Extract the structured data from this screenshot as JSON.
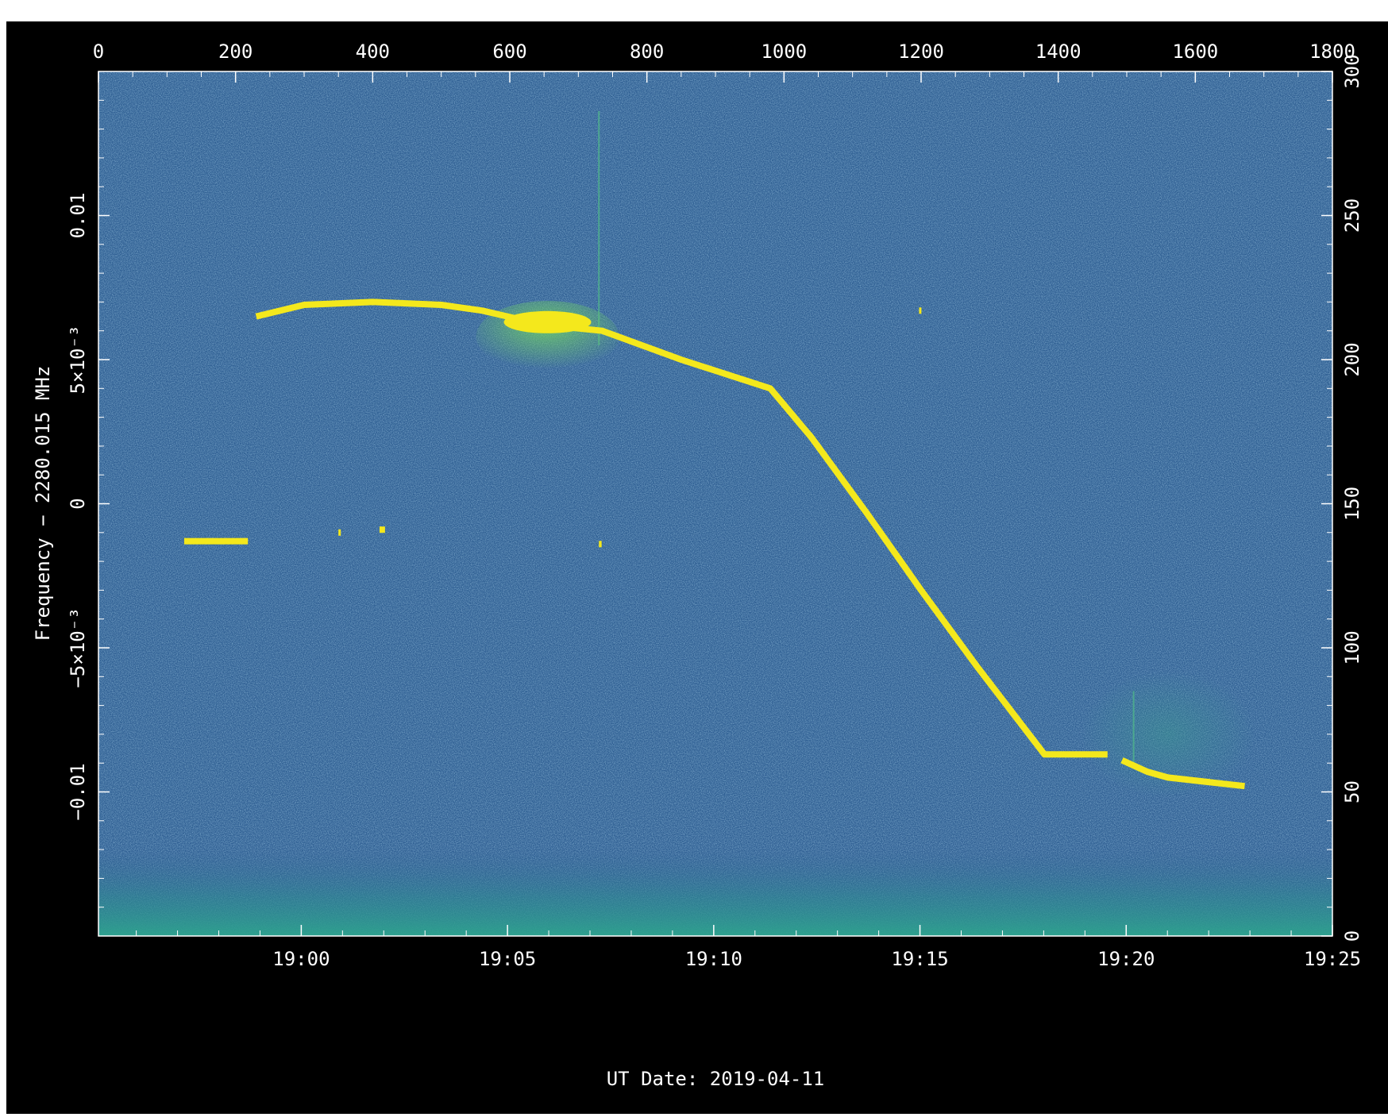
{
  "chart_data": {
    "type": "heatmap",
    "title": "",
    "xlabel": "UT Date: 2019-04-11",
    "ylabel": "Frequency − 2280.015 MHz",
    "top_axis": {
      "range": [
        0,
        1800
      ],
      "ticks": [
        0,
        200,
        400,
        600,
        800,
        1000,
        1200,
        1400,
        1600,
        1800
      ],
      "tick_labels": [
        "0",
        "200",
        "400",
        "600",
        "800",
        "1000",
        "1200",
        "1400",
        "1600",
        "1800"
      ]
    },
    "bottom_axis": {
      "ticks": [
        "19:00",
        "19:05",
        "19:10",
        "19:15",
        "19:20",
        "19:25"
      ],
      "tick_labels": [
        "19:00",
        "19:05",
        "19:10",
        "19:15",
        "19:20",
        "19:25"
      ],
      "range": [
        "18:55:05",
        "19:25:00"
      ]
    },
    "left_axis": {
      "range": [
        -0.015,
        0.015
      ],
      "ticks": [
        0.01,
        0.005,
        0,
        -0.005,
        -0.01
      ],
      "tick_labels": [
        "0.01",
        "5×10⁻³",
        "0",
        "−5×10⁻³",
        "−0.01"
      ]
    },
    "right_axis": {
      "range": [
        0,
        300
      ],
      "ticks": [
        0,
        50,
        100,
        150,
        200,
        250,
        300
      ],
      "tick_labels": [
        "0",
        "50",
        "100",
        "150",
        "200",
        "250",
        "300"
      ]
    },
    "colors": {
      "background": "#2f5f93",
      "noise": "#3a6ea0",
      "floor": "#2da38d",
      "signal": "#f4e81c",
      "halo": "#6ecb6a",
      "frame": "#000000",
      "text": "#ffffff"
    },
    "series": [
      {
        "points": [
          [
            230,
            0.0065
          ],
          [
            300,
            0.0069
          ],
          [
            400,
            0.007
          ],
          [
            500,
            0.0069
          ],
          [
            560,
            0.0067
          ],
          [
            650,
            0.0062
          ],
          [
            735,
            0.006
          ],
          [
            850,
            0.005
          ],
          [
            980,
            0.004
          ],
          [
            1040,
            0.0023
          ],
          [
            1120,
            -0.0003
          ],
          [
            1200,
            -0.003
          ],
          [
            1280,
            -0.0056
          ],
          [
            1380,
            -0.0087
          ],
          [
            1472,
            -0.0087
          ],
          [
            1493,
            -0.0089
          ],
          [
            1530,
            -0.0093
          ],
          [
            1560,
            -0.0095
          ],
          [
            1672,
            -0.0098
          ]
        ]
      }
    ],
    "fragments": [
      {
        "x0": 125,
        "x1": 218,
        "y": -0.0013
      },
      {
        "x0": 350,
        "x1": 352,
        "y": -0.001
      },
      {
        "x0": 410,
        "x1": 418,
        "y": -0.0009
      },
      {
        "x0": 730,
        "x1": 734,
        "y": -0.0014
      },
      {
        "x0": 1197,
        "x1": 1199,
        "y": 0.0067
      }
    ],
    "interference_x": [
      730,
      1510
    ]
  }
}
